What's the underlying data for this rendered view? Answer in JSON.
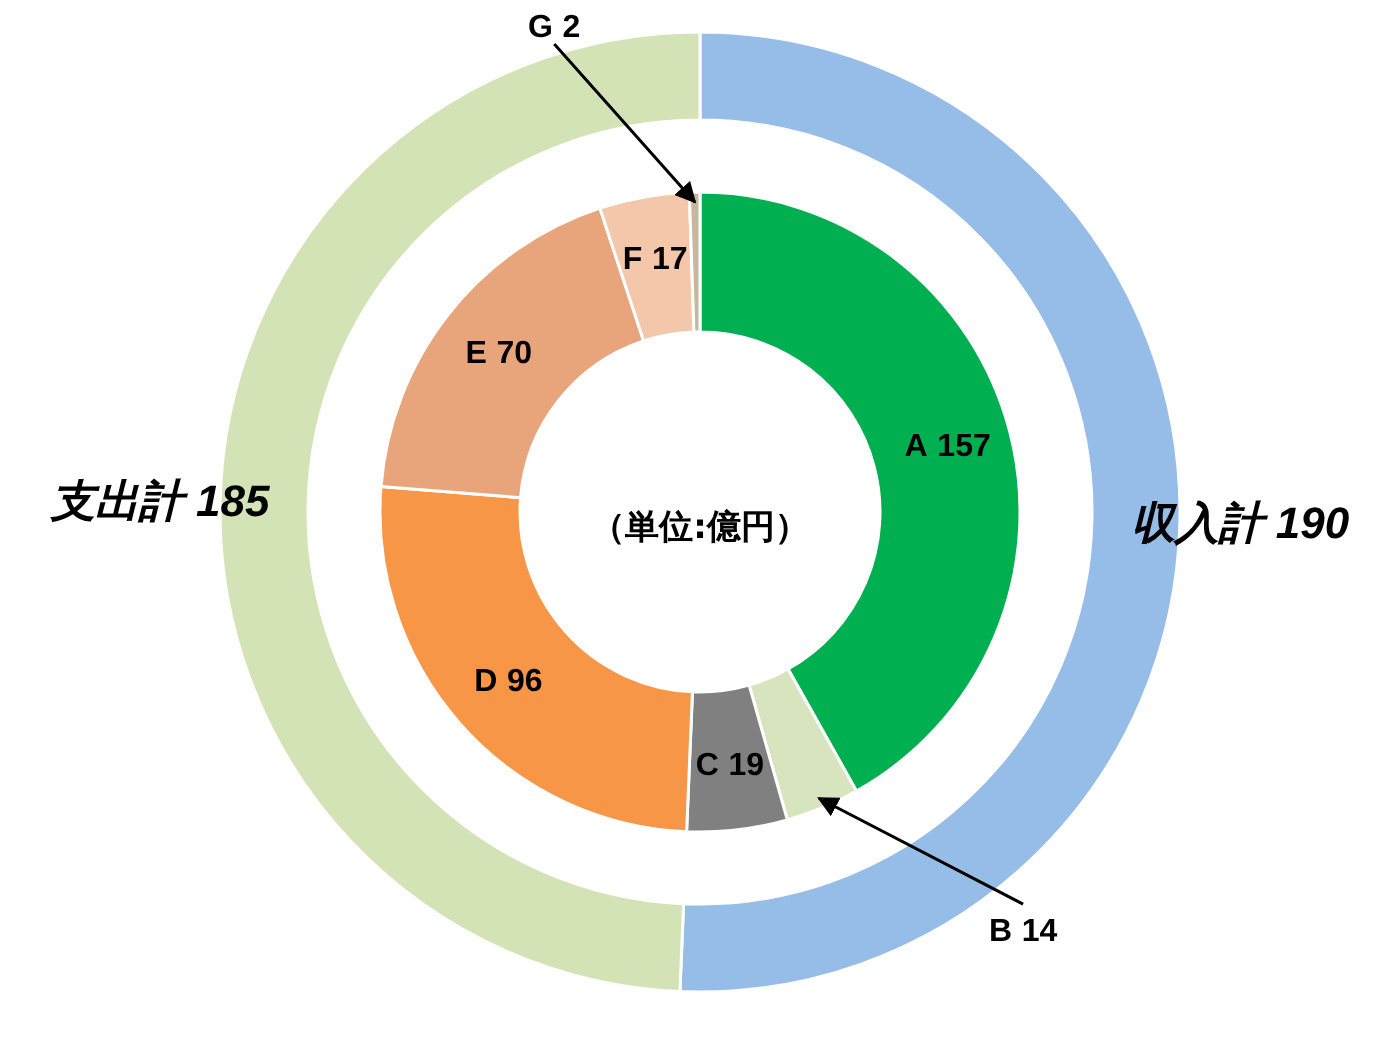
{
  "chart_data": [
    {
      "type": "donut",
      "categories": [
        "収入計",
        "支出計"
      ],
      "values": [
        190,
        185
      ],
      "colors": [
        "#95bde8",
        "#d4e3b5"
      ],
      "data_labels": true
    },
    {
      "type": "donut",
      "categories": [
        "A",
        "B",
        "C",
        "D",
        "E",
        "F",
        "G"
      ],
      "values": [
        157,
        14,
        19,
        96,
        70,
        17,
        2
      ],
      "colors": [
        "#00b050",
        "#d7e4bd",
        "#808080",
        "#f79646",
        "#e8a57c",
        "#f4c7aa",
        "#c9b7a0"
      ],
      "data_labels": true,
      "annotations": [
        "（単位:億円）"
      ]
    }
  ]
}
